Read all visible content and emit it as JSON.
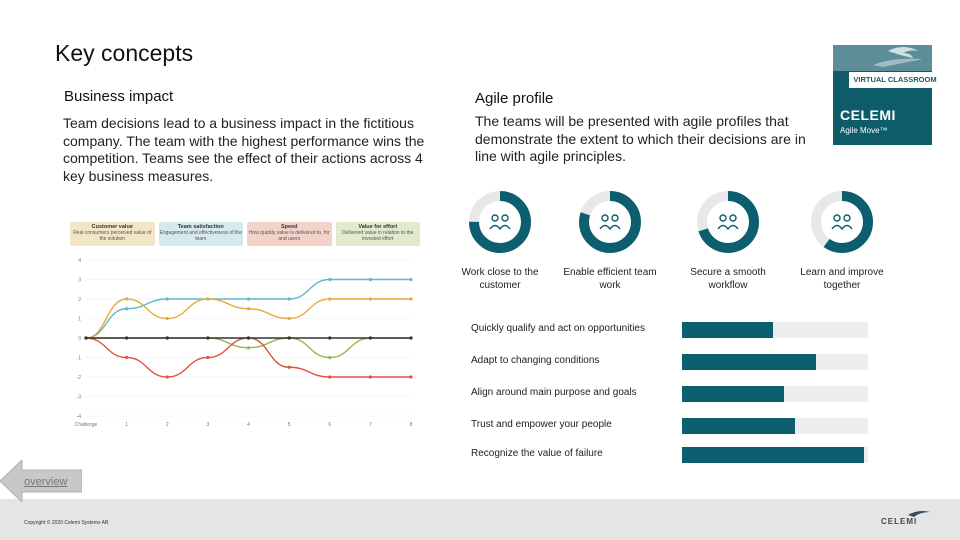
{
  "slide": {
    "title": "Key concepts"
  },
  "left": {
    "heading": "Business impact",
    "paragraph": "Team decisions lead to a business impact in the fictitious company. The team with the highest performance wins the competition. Teams see the effect of their actions across 4 key business measures.",
    "cards": [
      {
        "title": "Customer value",
        "text": "Real consumers perceived value of the solution",
        "color": "#f3e6c7"
      },
      {
        "title": "Team satisfaction",
        "text": "Engagement and effectiveness of the team",
        "color": "#d5e9ef"
      },
      {
        "title": "Speed",
        "text": "How quickly value is delivered to, for and users",
        "color": "#f3d3c9"
      },
      {
        "title": "Value for effort",
        "text": "Delivered value in relation to the invested effort",
        "color": "#e0ebcd"
      }
    ]
  },
  "chart_data": {
    "type": "line",
    "x": [
      0,
      1,
      2,
      3,
      4,
      5,
      6,
      7,
      8
    ],
    "x_tick_labels": [
      "Challenge",
      "1",
      "2",
      "3",
      "4",
      "5",
      "6",
      "7",
      "8"
    ],
    "ylim": [
      -4,
      4
    ],
    "y_ticks": [
      -4,
      -3,
      -2,
      -1,
      0,
      1,
      2,
      3,
      4
    ],
    "series": [
      {
        "color": "#5fb8c9",
        "values": [
          0,
          1.5,
          2,
          2,
          2,
          2,
          3,
          3,
          3
        ]
      },
      {
        "color": "#e8a93a",
        "values": [
          0,
          2,
          1,
          2,
          1.5,
          1,
          2,
          2,
          2
        ]
      },
      {
        "color": "#8fb948",
        "values": [
          0,
          0,
          0,
          0,
          -0.5,
          0,
          -1,
          0,
          0
        ]
      },
      {
        "color": "#e0523d",
        "values": [
          0,
          -1,
          -2,
          -1,
          0,
          -1.5,
          -2,
          -2,
          -2
        ]
      },
      {
        "color": "#333333",
        "values": [
          0,
          0,
          0,
          0,
          0,
          0,
          0,
          0,
          0
        ]
      }
    ]
  },
  "right": {
    "heading": "Agile profile",
    "paragraph": "The teams will be presented with agile profiles that demonstrate the extent to which their decisions are in line with agile principles.",
    "rings": [
      {
        "label": "Work close to the customer",
        "fraction": 0.75,
        "icon": "people-icon"
      },
      {
        "label": "Enable efficient team work",
        "fraction": 0.8,
        "icon": "team-icon"
      },
      {
        "label": "Secure a smooth workflow",
        "fraction": 0.7,
        "icon": "workflow-icon"
      },
      {
        "label": "Learn and improve together",
        "fraction": 0.6,
        "icon": "learn-icon"
      }
    ],
    "bars": [
      {
        "label": "Quickly qualify and act on opportunities",
        "fraction": 0.49
      },
      {
        "label": "Adapt to changing conditions",
        "fraction": 0.72
      },
      {
        "label": "Align around main purpose and goals",
        "fraction": 0.55
      },
      {
        "label": "Trust and empower your people",
        "fraction": 0.61
      },
      {
        "label": "Recognize the value of failure",
        "fraction": 0.98
      }
    ]
  },
  "logo": {
    "badge": "VIRTUAL CLASSROOM",
    "brand": "CELEMI",
    "product": "Agile Move™"
  },
  "footer": {
    "overview_link": "overview",
    "copyright": "Copyright © 2020 Celemi Systems AB",
    "brand": "CELEMI"
  },
  "colors": {
    "teal": "#0d5e6e",
    "ring_bg": "#e8e8e8"
  }
}
